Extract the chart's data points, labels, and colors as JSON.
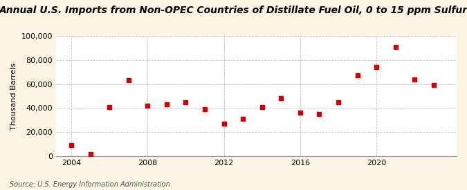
{
  "title": "Annual U.S. Imports from Non-OPEC Countries of Distillate Fuel Oil, 0 to 15 ppm Sulfur",
  "ylabel": "Thousand Barrels",
  "source": "Source: U.S. Energy Information Administration",
  "years": [
    2004,
    2005,
    2006,
    2007,
    2008,
    2009,
    2010,
    2011,
    2012,
    2013,
    2014,
    2015,
    2016,
    2017,
    2018,
    2019,
    2020,
    2021,
    2022,
    2023
  ],
  "values": [
    9000,
    1500,
    41000,
    63000,
    42000,
    43000,
    45000,
    39000,
    27000,
    31000,
    41000,
    48000,
    36000,
    35000,
    45000,
    67000,
    74000,
    91000,
    64000,
    59000
  ],
  "marker_color": "#cc0000",
  "background_color": "#fdf5e4",
  "plot_bg_color": "#ffffff",
  "grid_color": "#aaaaaa",
  "ylim": [
    0,
    100000
  ],
  "yticks": [
    0,
    20000,
    40000,
    60000,
    80000,
    100000
  ],
  "xticks": [
    2004,
    2008,
    2012,
    2016,
    2020
  ],
  "title_fontsize": 10,
  "label_fontsize": 8,
  "source_fontsize": 7
}
